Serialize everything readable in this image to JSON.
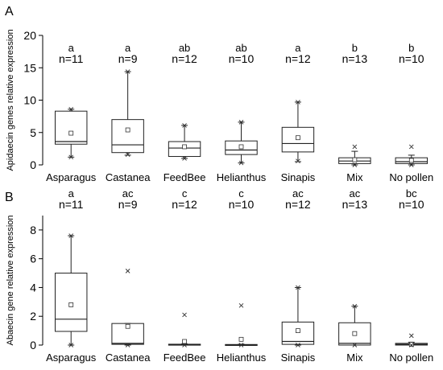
{
  "chart_data": [
    {
      "type": "box",
      "panel_label": "A",
      "title": "",
      "xlabel": "",
      "ylabel": "Apidaecin genes relative expression",
      "ylim": [
        0,
        20
      ],
      "yticks": [
        0,
        5,
        10,
        15,
        20
      ],
      "grid": false,
      "legend": "none",
      "categories": [
        "Asparagus",
        "Castanea",
        "FeedBee",
        "Helianthus",
        "Sinapis",
        "Mix",
        "No pollen"
      ],
      "letters": [
        "a",
        "a",
        "ab",
        "ab",
        "a",
        "b",
        "b"
      ],
      "n_labels": [
        "n=11",
        "n=9",
        "n=12",
        "n=10",
        "n=12",
        "n=13",
        "n=10"
      ],
      "boxes": [
        {
          "whisker_low": 1.2,
          "q1": 3.2,
          "median": 3.6,
          "q3": 8.3,
          "whisker_high": 8.6,
          "mean": 4.9,
          "extremes": [
            8.6,
            1.2
          ]
        },
        {
          "whisker_low": 1.5,
          "q1": 1.9,
          "median": 3.1,
          "q3": 7.0,
          "whisker_high": 14.4,
          "mean": 5.4,
          "extremes": [
            14.4,
            1.6
          ]
        },
        {
          "whisker_low": 1.0,
          "q1": 1.3,
          "median": 2.6,
          "q3": 3.6,
          "whisker_high": 6.1,
          "mean": 2.8,
          "extremes": [
            6.1,
            1.0
          ]
        },
        {
          "whisker_low": 0.3,
          "q1": 1.6,
          "median": 2.3,
          "q3": 3.7,
          "whisker_high": 6.6,
          "mean": 2.8,
          "extremes": [
            6.6,
            0.3
          ]
        },
        {
          "whisker_low": 0.5,
          "q1": 2.0,
          "median": 3.3,
          "q3": 5.8,
          "whisker_high": 9.7,
          "mean": 4.2,
          "extremes": [
            9.7,
            0.6
          ]
        },
        {
          "whisker_low": 0.0,
          "q1": 0.2,
          "median": 0.6,
          "q3": 1.1,
          "whisker_high": 2.1,
          "mean": 0.8,
          "extremes": [
            2.8,
            0.0
          ]
        },
        {
          "whisker_low": 0.0,
          "q1": 0.2,
          "median": 0.5,
          "q3": 1.1,
          "whisker_high": 1.5,
          "mean": 0.7,
          "extremes": [
            2.8,
            0.0
          ]
        }
      ]
    },
    {
      "type": "box",
      "panel_label": "B",
      "title": "",
      "xlabel": "",
      "ylabel": "Abaecin gene relative expression",
      "ylim": [
        0,
        9
      ],
      "yticks": [
        0,
        2,
        4,
        6,
        8
      ],
      "grid": false,
      "legend": "none",
      "categories": [
        "Asparagus",
        "Castanea",
        "FeedBee",
        "Helianthus",
        "Sinapis",
        "Mix",
        "No pollen"
      ],
      "letters": [
        "a",
        "ac",
        "c",
        "c",
        "ac",
        "ac",
        "bc"
      ],
      "n_labels": [
        "n=11",
        "n=9",
        "n=12",
        "n=10",
        "n=12",
        "n=13",
        "n=10"
      ],
      "boxes": [
        {
          "whisker_low": 0.0,
          "q1": 0.95,
          "median": 1.8,
          "q3": 5.0,
          "whisker_high": 7.6,
          "mean": 2.8,
          "extremes": [
            7.6,
            0.0
          ]
        },
        {
          "whisker_low": 0.0,
          "q1": 0.05,
          "median": 0.12,
          "q3": 1.5,
          "whisker_high": 1.5,
          "mean": 1.3,
          "extremes": [
            5.15,
            0.0
          ]
        },
        {
          "whisker_low": 0.0,
          "q1": 0.0,
          "median": 0.02,
          "q3": 0.06,
          "whisker_high": 0.08,
          "mean": 0.25,
          "extremes": [
            2.1,
            0.0
          ]
        },
        {
          "whisker_low": 0.0,
          "q1": 0.0,
          "median": 0.01,
          "q3": 0.04,
          "whisker_high": 0.06,
          "mean": 0.4,
          "extremes": [
            2.75,
            0.0
          ]
        },
        {
          "whisker_low": 0.0,
          "q1": 0.05,
          "median": 0.25,
          "q3": 1.6,
          "whisker_high": 4.0,
          "mean": 1.0,
          "extremes": [
            4.0,
            0.0
          ]
        },
        {
          "whisker_low": 0.0,
          "q1": 0.0,
          "median": 0.12,
          "q3": 1.55,
          "whisker_high": 2.7,
          "mean": 0.8,
          "extremes": [
            2.7,
            0.0
          ]
        },
        {
          "whisker_low": 0.0,
          "q1": 0.0,
          "median": 0.05,
          "q3": 0.12,
          "whisker_high": 0.2,
          "mean": 0.05,
          "extremes": [
            0.65,
            0.0
          ]
        }
      ]
    }
  ]
}
